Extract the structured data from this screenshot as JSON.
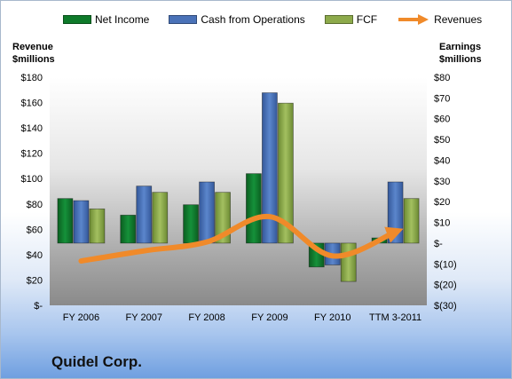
{
  "company": "Quidel Corp.",
  "colors": {
    "net_income": "#0e7a2a",
    "cash_from_operations": "#4a72b8",
    "fcf": "#8daa4b",
    "revenues": "#f08a2a"
  },
  "legend": {
    "net_income": "Net Income",
    "cash_from_operations": "Cash from Operations",
    "fcf": "FCF",
    "revenues": "Revenues"
  },
  "chart_data": {
    "type": "bar",
    "categories": [
      "FY 2006",
      "FY 2007",
      "FY 2008",
      "FY 2009",
      "FY 2010",
      "TTM 3-2011"
    ],
    "left_axis": {
      "title_line1": "Revenue",
      "title_line2": "$millions",
      "range": [
        0,
        180
      ],
      "ticks": [
        "$-",
        "$20",
        "$40",
        "$60",
        "$80",
        "$100",
        "$120",
        "$140",
        "$160",
        "$180"
      ]
    },
    "right_axis": {
      "title_line1": "Earnings",
      "title_line2": "$millions",
      "range": [
        -30,
        80
      ],
      "ticks": [
        "$(30)",
        "$(20)",
        "$(10)",
        "$-",
        "$10",
        "$20",
        "$30",
        "$40",
        "$50",
        "$60",
        "$70",
        "$80"
      ]
    },
    "bar_series": [
      {
        "name": "Net Income",
        "axis": "right",
        "values": [
          21.5,
          13.5,
          18.5,
          33.5,
          -11.5,
          2.5
        ]
      },
      {
        "name": "Cash from Operations",
        "axis": "right",
        "values": [
          20.5,
          27.5,
          29.5,
          72.5,
          -10.5,
          29.5
        ]
      },
      {
        "name": "FCF",
        "axis": "right",
        "values": [
          16.5,
          24.5,
          24.5,
          67.5,
          -18.5,
          21.5
        ]
      }
    ],
    "line_series": [
      {
        "name": "Revenues",
        "axis": "left",
        "values": [
          35,
          43,
          50,
          70,
          39,
          58
        ]
      }
    ],
    "grid": false,
    "legend_position": "top"
  }
}
